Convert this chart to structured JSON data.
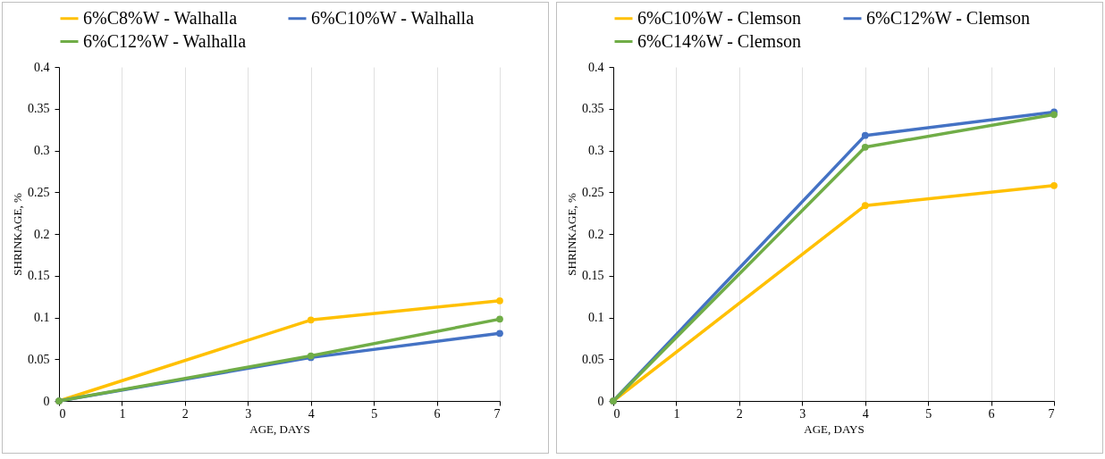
{
  "chart_data": [
    {
      "type": "line",
      "xlabel": "AGE, DAYS",
      "ylabel": "SHRINKAGE, %",
      "x": [
        0,
        4,
        7
      ],
      "xlim": [
        0,
        7
      ],
      "xticks": [
        0,
        1,
        2,
        3,
        4,
        5,
        6,
        7
      ],
      "ylim": [
        0,
        0.4
      ],
      "yticks": [
        0,
        0.05,
        0.1,
        0.15,
        0.2,
        0.25,
        0.3,
        0.35,
        0.4
      ],
      "grid": "x",
      "legend": "top left",
      "marker": "circle",
      "line_style": "solid",
      "series": [
        {
          "name": "6%C8%W - Walhalla",
          "color": "#ffc000",
          "values": [
            0,
            0.097,
            0.12
          ]
        },
        {
          "name": "6%C10%W - Walhalla",
          "color": "#4472c4",
          "values": [
            0,
            0.052,
            0.081
          ]
        },
        {
          "name": "6%C12%W - Walhalla",
          "color": "#70ad47",
          "values": [
            0,
            0.054,
            0.098
          ]
        }
      ]
    },
    {
      "type": "line",
      "xlabel": "AGE, DAYS",
      "ylabel": "SHRINKAGE, %",
      "x": [
        0,
        4,
        7
      ],
      "xlim": [
        0,
        7
      ],
      "xticks": [
        0,
        1,
        2,
        3,
        4,
        5,
        6,
        7
      ],
      "ylim": [
        0,
        0.4
      ],
      "yticks": [
        0,
        0.05,
        0.1,
        0.15,
        0.2,
        0.25,
        0.3,
        0.35,
        0.4
      ],
      "grid": "x",
      "legend": "top left",
      "marker": "circle",
      "line_style": "solid",
      "series": [
        {
          "name": "6%C10%W - Clemson",
          "color": "#ffc000",
          "values": [
            0,
            0.234,
            0.258
          ]
        },
        {
          "name": "6%C12%W - Clemson",
          "color": "#4472c4",
          "values": [
            0,
            0.318,
            0.346
          ]
        },
        {
          "name": "6%C14%W - Clemson",
          "color": "#70ad47",
          "values": [
            0,
            0.304,
            0.343
          ]
        }
      ]
    }
  ]
}
